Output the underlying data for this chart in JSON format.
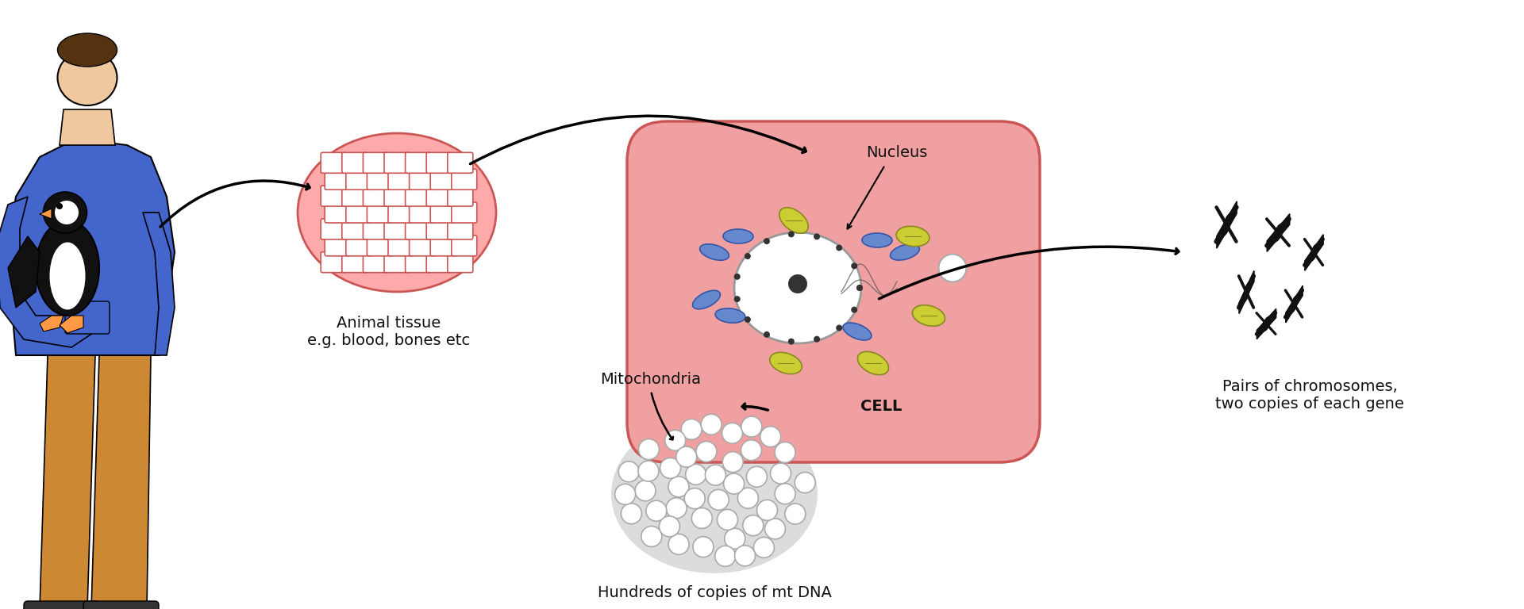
{
  "bg_color": "#ffffff",
  "fig_width": 19.2,
  "fig_height": 7.68,
  "labels": {
    "nucleus": "Nucleus",
    "cell": "CELL",
    "mitochondria": "Mitochondria",
    "mt_dna": "Hundreds of copies of mt DNA",
    "chromosomes": "Pairs of chromosomes,\ntwo copies of each gene",
    "animal_tissue": "Animal tissue\ne.g. blood, bones etc"
  },
  "colors": {
    "cell_fill": "#f0a0a0",
    "cell_edge": "#cc4444",
    "nucleus_fill": "#ffffff",
    "nucleus_edge": "#888888",
    "organelle_blue": "#6688cc",
    "organelle_yellow": "#cccc44",
    "tissue_fill": "#ff8888",
    "tissue_grid": "#ffffff",
    "mt_dna_fill": "#dddddd",
    "mt_dna_circle": "#ffffff",
    "chromosome_color": "#111111",
    "arrow_color": "#111111",
    "person_blue": "#4466cc",
    "person_skin": "#f0c8a0",
    "person_pants": "#cc8833",
    "penguin_black": "#111111",
    "penguin_white": "#ffffff",
    "penguin_beak": "#ff9944",
    "text_color": "#111111"
  },
  "font_size": {
    "label": 14,
    "cell_label": 13
  }
}
